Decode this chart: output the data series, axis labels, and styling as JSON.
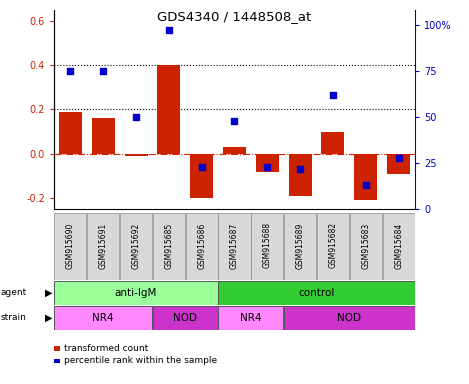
{
  "title": "GDS4340 / 1448508_at",
  "samples": [
    "GSM915690",
    "GSM915691",
    "GSM915692",
    "GSM915685",
    "GSM915686",
    "GSM915687",
    "GSM915688",
    "GSM915689",
    "GSM915682",
    "GSM915683",
    "GSM915684"
  ],
  "bar_values": [
    0.19,
    0.16,
    -0.01,
    0.4,
    -0.2,
    0.03,
    -0.08,
    -0.19,
    0.1,
    -0.21,
    -0.09
  ],
  "percentile_values": [
    75,
    75,
    50,
    97,
    23,
    48,
    23,
    22,
    62,
    13,
    28
  ],
  "ylim": [
    -0.25,
    0.65
  ],
  "y2lim": [
    0,
    108.33
  ],
  "yticks": [
    -0.2,
    0.0,
    0.2,
    0.4,
    0.6
  ],
  "y2ticks": [
    0,
    25,
    50,
    75,
    100
  ],
  "y2ticklabels": [
    "0",
    "25",
    "50",
    "75",
    "100%"
  ],
  "bar_color": "#CC2200",
  "dot_color": "#0000CC",
  "hline_color": "#CC2200",
  "dotted_line_color": "#000000",
  "agent_groups": [
    {
      "label": "anti-IgM",
      "start": 0,
      "end": 5,
      "color": "#99FF99"
    },
    {
      "label": "control",
      "start": 5,
      "end": 11,
      "color": "#33CC33"
    }
  ],
  "strain_groups": [
    {
      "label": "NR4",
      "start": 0,
      "end": 3,
      "color": "#FF88FF"
    },
    {
      "label": "NOD",
      "start": 3,
      "end": 5,
      "color": "#CC33CC"
    },
    {
      "label": "NR4",
      "start": 5,
      "end": 7,
      "color": "#FF88FF"
    },
    {
      "label": "NOD",
      "start": 7,
      "end": 11,
      "color": "#CC33CC"
    }
  ],
  "legend_items": [
    {
      "label": "transformed count",
      "color": "#CC2200"
    },
    {
      "label": "percentile rank within the sample",
      "color": "#0000CC"
    }
  ]
}
